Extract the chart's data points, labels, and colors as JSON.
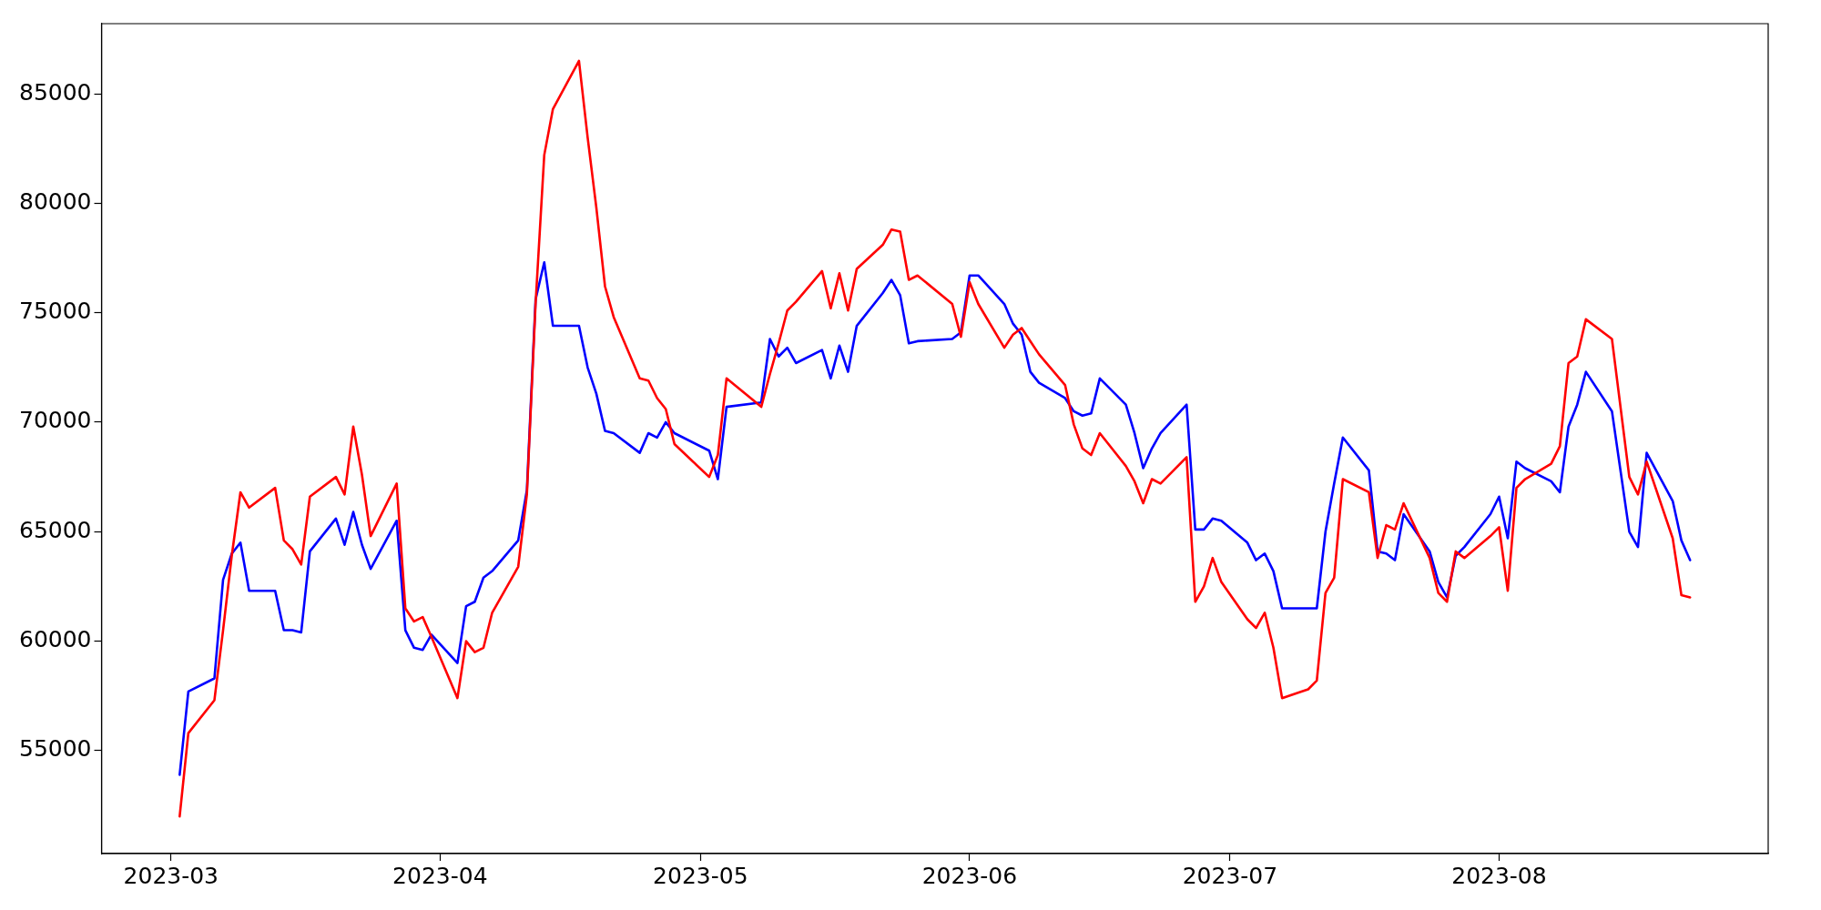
{
  "chart_data": {
    "type": "line",
    "x": [
      "2023-03-02",
      "2023-03-03",
      "2023-03-06",
      "2023-03-07",
      "2023-03-08",
      "2023-03-09",
      "2023-03-10",
      "2023-03-13",
      "2023-03-14",
      "2023-03-15",
      "2023-03-16",
      "2023-03-17",
      "2023-03-20",
      "2023-03-21",
      "2023-03-22",
      "2023-03-23",
      "2023-03-24",
      "2023-03-27",
      "2023-03-28",
      "2023-03-29",
      "2023-03-30",
      "2023-03-31",
      "2023-04-03",
      "2023-04-04",
      "2023-04-05",
      "2023-04-06",
      "2023-04-07",
      "2023-04-10",
      "2023-04-11",
      "2023-04-12",
      "2023-04-13",
      "2023-04-14",
      "2023-04-17",
      "2023-04-18",
      "2023-04-19",
      "2023-04-20",
      "2023-04-21",
      "2023-04-24",
      "2023-04-25",
      "2023-04-26",
      "2023-04-27",
      "2023-04-28",
      "2023-05-02",
      "2023-05-03",
      "2023-05-04",
      "2023-05-08",
      "2023-05-09",
      "2023-05-10",
      "2023-05-11",
      "2023-05-12",
      "2023-05-15",
      "2023-05-16",
      "2023-05-17",
      "2023-05-18",
      "2023-05-19",
      "2023-05-22",
      "2023-05-23",
      "2023-05-24",
      "2023-05-25",
      "2023-05-26",
      "2023-05-30",
      "2023-05-31",
      "2023-06-01",
      "2023-06-02",
      "2023-06-05",
      "2023-06-06",
      "2023-06-07",
      "2023-06-08",
      "2023-06-09",
      "2023-06-12",
      "2023-06-13",
      "2023-06-14",
      "2023-06-15",
      "2023-06-16",
      "2023-06-19",
      "2023-06-20",
      "2023-06-21",
      "2023-06-22",
      "2023-06-23",
      "2023-06-26",
      "2023-06-27",
      "2023-06-28",
      "2023-06-29",
      "2023-06-30",
      "2023-07-03",
      "2023-07-04",
      "2023-07-05",
      "2023-07-06",
      "2023-07-07",
      "2023-07-10",
      "2023-07-11",
      "2023-07-12",
      "2023-07-13",
      "2023-07-14",
      "2023-07-17",
      "2023-07-18",
      "2023-07-19",
      "2023-07-20",
      "2023-07-21",
      "2023-07-24",
      "2023-07-25",
      "2023-07-26",
      "2023-07-27",
      "2023-07-28",
      "2023-07-31",
      "2023-08-01",
      "2023-08-02",
      "2023-08-03",
      "2023-08-04",
      "2023-08-07",
      "2023-08-08",
      "2023-08-09",
      "2023-08-10",
      "2023-08-11",
      "2023-08-14",
      "2023-08-16",
      "2023-08-17",
      "2023-08-18",
      "2023-08-21",
      "2023-08-22",
      "2023-08-23"
    ],
    "series": [
      {
        "color": "#ff0000",
        "values": [
          52000,
          55800,
          57300,
          60500,
          63900,
          66800,
          66100,
          67000,
          64600,
          64200,
          63500,
          66600,
          67500,
          66700,
          69800,
          67600,
          64800,
          67200,
          61500,
          60900,
          61100,
          60200,
          57400,
          60000,
          59500,
          59700,
          61300,
          63400,
          66700,
          75400,
          82200,
          84300,
          86500,
          83000,
          79800,
          76200,
          74800,
          72000,
          71900,
          71100,
          70600,
          69000,
          67500,
          68500,
          72000,
          70700,
          72200,
          73600,
          75100,
          75500,
          76900,
          75200,
          76800,
          75100,
          77000,
          78100,
          78800,
          78700,
          76500,
          76700,
          75400,
          73900,
          76400,
          75400,
          73400,
          74000,
          74300,
          73700,
          73100,
          71700,
          69900,
          68800,
          68500,
          69500,
          68000,
          67300,
          66300,
          67400,
          67200,
          68400,
          61800,
          62500,
          63800,
          62700,
          61000,
          60600,
          61300,
          59700,
          57400,
          57800,
          58200,
          62200,
          62900,
          67400,
          66800,
          63800,
          65300,
          65100,
          66300,
          63800,
          62200,
          61800,
          64100,
          63800,
          64800,
          65200,
          62300,
          67000,
          67400,
          68100,
          68900,
          72700,
          73000,
          74700,
          73800,
          67500,
          66700,
          68200,
          64700,
          62100,
          62000
        ]
      },
      {
        "color": "#0000ff",
        "values": [
          53900,
          57700,
          58300,
          62800,
          64000,
          64500,
          62300,
          62300,
          60500,
          60500,
          60400,
          64100,
          65600,
          64400,
          65900,
          64400,
          63300,
          65500,
          60500,
          59700,
          59600,
          60300,
          59000,
          61600,
          61800,
          62900,
          63200,
          64600,
          66900,
          75600,
          77300,
          74400,
          74400,
          72500,
          71300,
          69600,
          69500,
          68600,
          69500,
          69300,
          70000,
          69500,
          68700,
          67400,
          70700,
          70900,
          73800,
          73000,
          73400,
          72700,
          73300,
          72000,
          73500,
          72300,
          74400,
          75900,
          76500,
          75800,
          73600,
          73700,
          73800,
          74100,
          76700,
          76700,
          75400,
          74500,
          74000,
          72300,
          71800,
          71100,
          70500,
          70300,
          70400,
          72000,
          70800,
          69500,
          67900,
          68800,
          69500,
          70800,
          65100,
          65100,
          65600,
          65500,
          64500,
          63700,
          64000,
          63200,
          61500,
          61500,
          61500,
          65000,
          67200,
          69300,
          67800,
          64100,
          64000,
          63700,
          65800,
          64100,
          62700,
          62000,
          63900,
          64300,
          65800,
          66600,
          64700,
          68200,
          67900,
          67300,
          66800,
          69800,
          70800,
          72300,
          70500,
          65000,
          64300,
          68600,
          66400,
          64600,
          63700
        ]
      }
    ],
    "xlim": [
      "2023-02-21",
      "2023-09-01"
    ],
    "xticks": [
      "2023-03",
      "2023-04",
      "2023-05",
      "2023-06",
      "2023-07",
      "2023-08"
    ],
    "ylim": [
      50300,
      88200
    ],
    "yticks": [
      55000,
      60000,
      65000,
      70000,
      75000,
      80000,
      85000
    ],
    "grid": false,
    "legend": false,
    "marker": "none",
    "line_style": "solid"
  }
}
